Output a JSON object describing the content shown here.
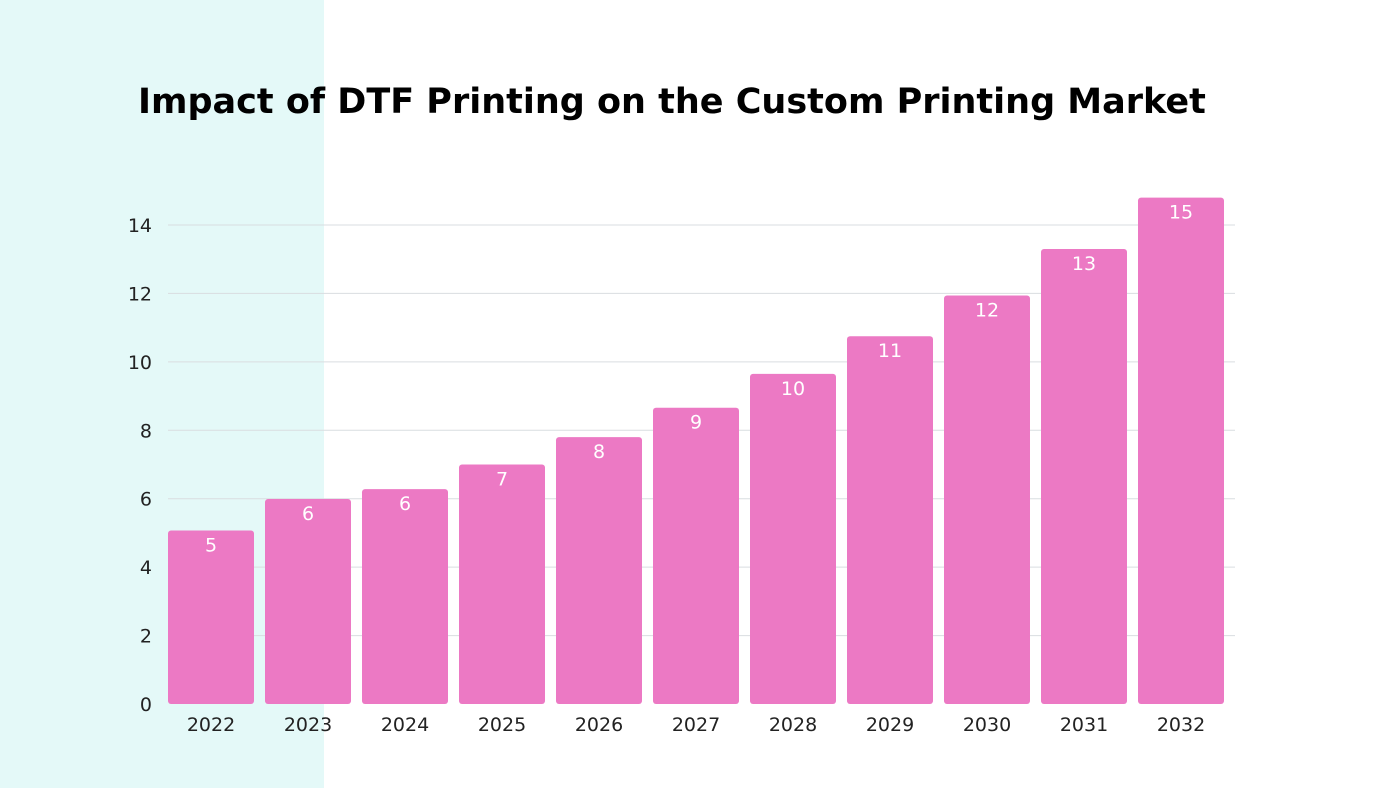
{
  "colors": {
    "background": "#ffffff",
    "side_panel": "#e4f9f8",
    "bar": "#ec79c4",
    "bar_label": "#ffffff",
    "gridline": "#d9dde0",
    "text": "#222222"
  },
  "chart_data": {
    "type": "bar",
    "title": "Impact of DTF Printing on the Custom Printing Market",
    "xlabel": "",
    "ylabel": "",
    "grid": true,
    "legend": "none",
    "ylim": [
      0,
      14
    ],
    "yticks": [
      0,
      2,
      4,
      6,
      8,
      10,
      12,
      14
    ],
    "categories": [
      "2022",
      "2023",
      "2024",
      "2025",
      "2026",
      "2027",
      "2028",
      "2029",
      "2030",
      "2031",
      "2032"
    ],
    "values": [
      5.07,
      5.99,
      6.28,
      7.0,
      7.8,
      8.66,
      9.65,
      10.75,
      11.94,
      13.3,
      14.8
    ],
    "data_labels": [
      "5",
      "6",
      "6",
      "7",
      "8",
      "9",
      "10",
      "11",
      "12",
      "13",
      "15"
    ]
  }
}
